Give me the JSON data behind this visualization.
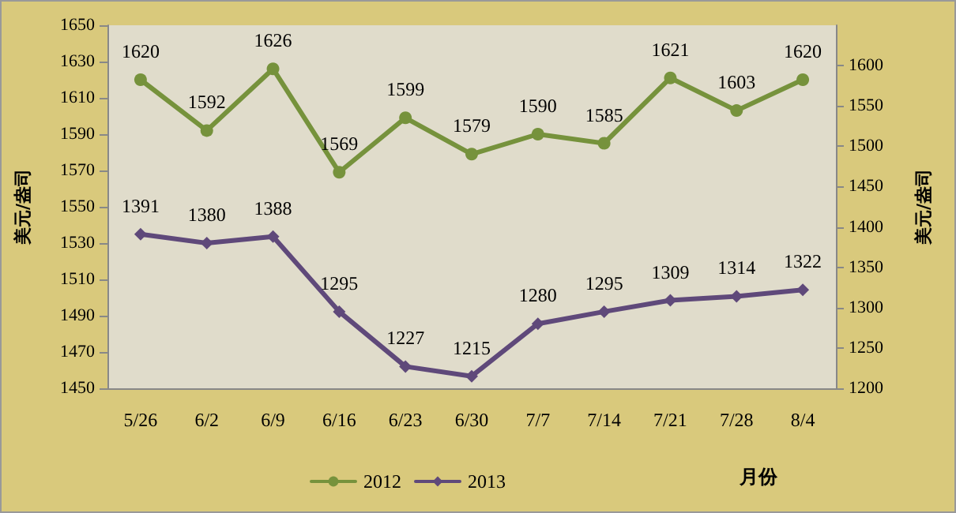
{
  "chart_data": {
    "type": "line",
    "xlabel": "月份",
    "ylabel": "美元/盎司",
    "y2label": "美元/盎司",
    "categories": [
      "5/26",
      "6/2",
      "6/9",
      "6/16",
      "6/23",
      "6/30",
      "7/7",
      "7/14",
      "7/21",
      "7/28",
      "8/4"
    ],
    "series": [
      {
        "name": "2012",
        "color": "#76923c",
        "marker": "circle",
        "values": [
          1620,
          1592,
          1626,
          1569,
          1599,
          1579,
          1590,
          1585,
          1621,
          1603,
          1620
        ]
      },
      {
        "name": "2013",
        "color": "#5f497a",
        "marker": "diamond",
        "axis": "y2",
        "values": [
          1391,
          1380,
          1388,
          1295,
          1227,
          1215,
          1280,
          1295,
          1309,
          1314,
          1322
        ]
      }
    ],
    "ylim": [
      1450,
      1650
    ],
    "yticks": [
      1450,
      1470,
      1490,
      1510,
      1530,
      1550,
      1570,
      1590,
      1610,
      1630,
      1650
    ],
    "y2lim": [
      1200,
      1650
    ],
    "y2ticks": [
      1200,
      1250,
      1300,
      1350,
      1400,
      1450,
      1500,
      1550,
      1600
    ],
    "data_labels": true,
    "legend": "bottom",
    "grid": false
  }
}
